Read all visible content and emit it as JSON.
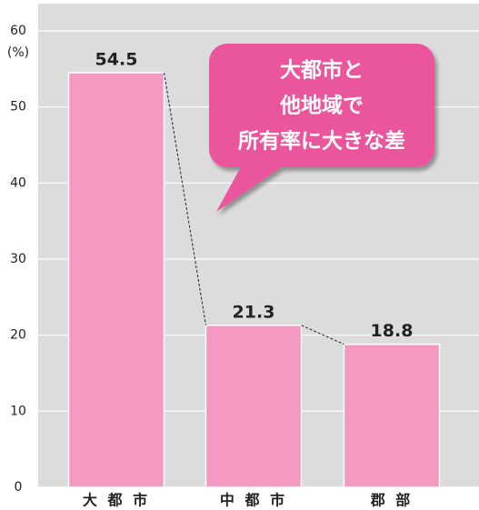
{
  "chart_data": {
    "type": "bar",
    "y_unit": "(%)",
    "categories": [
      "大 都 市",
      "中 都 市",
      "郡 部"
    ],
    "values": [
      54.5,
      21.3,
      18.8
    ],
    "color": "#f49ac2",
    "ylim": [
      0,
      60
    ],
    "yticks": [
      0,
      10,
      20,
      30,
      40,
      50,
      60
    ],
    "grid": true,
    "annotation": [
      "大都市と",
      "他地域で",
      "所有率に大きな差"
    ],
    "annotation_color": "#ea559c"
  }
}
